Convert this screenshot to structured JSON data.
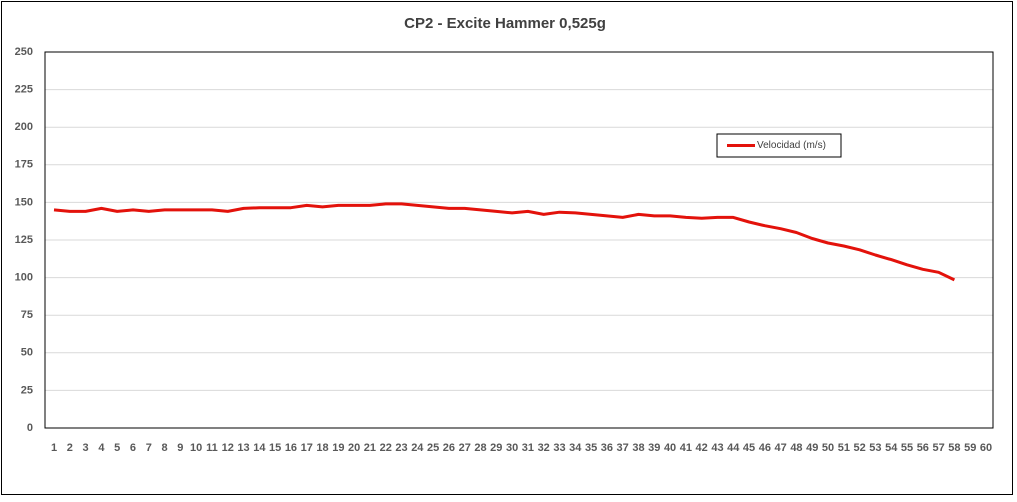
{
  "chart_data": {
    "type": "line",
    "title": "CP2 - Excite Hammer 0,525g",
    "categories": [
      1,
      2,
      3,
      4,
      5,
      6,
      7,
      8,
      9,
      10,
      11,
      12,
      13,
      14,
      15,
      16,
      17,
      18,
      19,
      20,
      21,
      22,
      23,
      24,
      25,
      26,
      27,
      28,
      29,
      30,
      31,
      32,
      33,
      34,
      35,
      36,
      37,
      38,
      39,
      40,
      41,
      42,
      43,
      44,
      45,
      46,
      47,
      48,
      49,
      50,
      51,
      52,
      53,
      54,
      55,
      56,
      57,
      58,
      59,
      60
    ],
    "series": [
      {
        "name": "Velocidad (m/s)",
        "color": "#e3120b",
        "values": [
          145,
          144,
          144,
          146,
          144,
          145,
          144,
          145,
          145,
          145,
          145,
          144,
          146,
          146.5,
          146.5,
          146.5,
          148,
          147,
          148,
          148,
          148,
          149,
          149,
          148,
          147,
          146,
          146,
          145,
          144,
          143,
          144,
          142,
          143.5,
          143,
          142,
          141,
          140,
          142,
          141,
          141,
          140,
          139.5,
          140,
          140,
          137,
          134.5,
          132.5,
          130,
          126,
          123,
          121,
          118.5,
          115,
          112,
          108.5,
          105.5,
          103.5,
          98.5,
          null,
          null
        ]
      }
    ],
    "ylim": [
      0,
      250
    ],
    "yticks": [
      0,
      25,
      50,
      75,
      100,
      125,
      150,
      175,
      200,
      225,
      250
    ],
    "grid": true,
    "legend_loc": "upper right"
  }
}
